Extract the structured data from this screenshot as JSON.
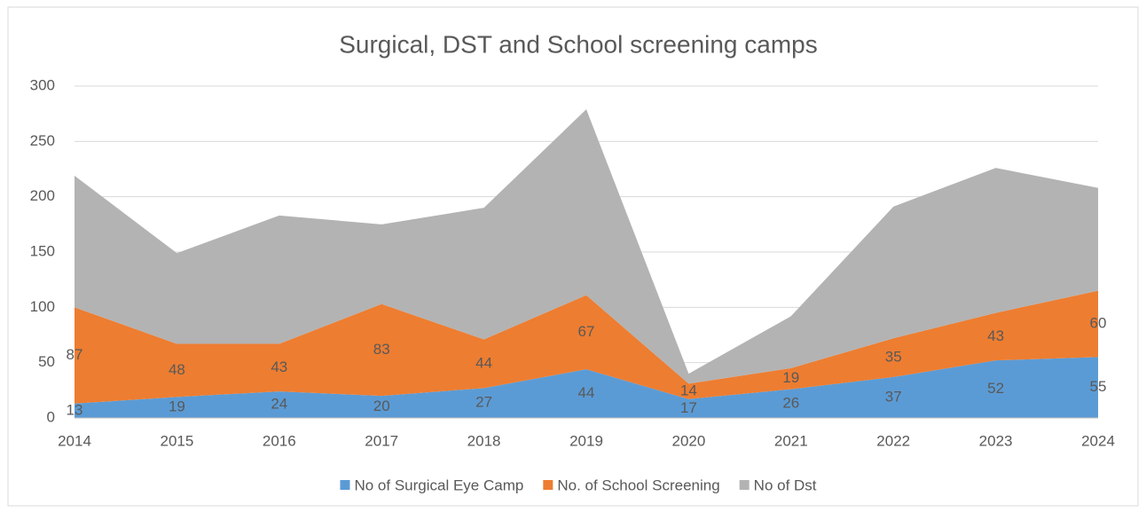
{
  "chart_data": {
    "type": "area",
    "stacked": true,
    "title": "Surgical, DST and School screening camps",
    "categories": [
      "2014",
      "2015",
      "2016",
      "2017",
      "2018",
      "2019",
      "2020",
      "2021",
      "2022",
      "2023",
      "2024"
    ],
    "series": [
      {
        "name": "No of Surgical Eye Camp",
        "color": "#5b9bd5",
        "values": [
          13,
          19,
          24,
          20,
          27,
          44,
          17,
          26,
          37,
          52,
          55
        ],
        "show_labels": true
      },
      {
        "name": "No. of School Screening",
        "color": "#ed7d31",
        "values": [
          87,
          48,
          43,
          83,
          44,
          67,
          14,
          19,
          35,
          43,
          60
        ],
        "show_labels": true
      },
      {
        "name": "No of Dst",
        "color": "#b3b3b3",
        "values": [
          119,
          82,
          116,
          72,
          119,
          168,
          9,
          47,
          119,
          131,
          93
        ],
        "show_labels": false
      }
    ],
    "ylim": [
      0,
      300
    ],
    "yticks": [
      0,
      50,
      100,
      150,
      200,
      250,
      300
    ],
    "grid": true,
    "legend": "bottom"
  }
}
